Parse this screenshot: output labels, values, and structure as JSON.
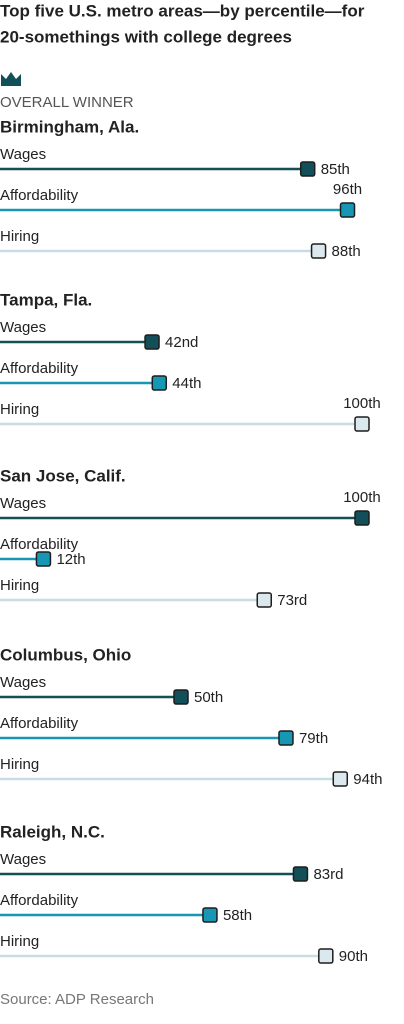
{
  "chart_data": {
    "type": "lollipop",
    "title": [
      "Top five U.S. metro areas—by percentile—for",
      "20-somethings with college degrees"
    ],
    "annotation": "OVERALL WINNER",
    "source": "Source: ADP Research",
    "xlim": [
      0,
      100
    ],
    "metrics": [
      {
        "name": "Wages",
        "color": "#134f58",
        "marker": "#134f58"
      },
      {
        "name": "Affordability",
        "color": "#1897b4",
        "marker": "#1897b4"
      },
      {
        "name": "Hiring",
        "color": "#c8dde3",
        "marker": "#dbe8ee"
      }
    ],
    "groups": [
      {
        "name": "Birmingham, Ala.",
        "values": [
          85,
          96,
          88
        ],
        "value_labels": [
          "85th",
          "96th",
          "88th"
        ]
      },
      {
        "name": "Tampa, Fla.",
        "values": [
          42,
          44,
          100
        ],
        "value_labels": [
          "42nd",
          "44th",
          "100th"
        ]
      },
      {
        "name": "San Jose, Calif.",
        "values": [
          100,
          12,
          73
        ],
        "value_labels": [
          "100th",
          "12th",
          "73rd"
        ]
      },
      {
        "name": "Columbus, Ohio",
        "values": [
          50,
          79,
          94
        ],
        "value_labels": [
          "50th",
          "79th",
          "94th"
        ]
      },
      {
        "name": "Raleigh, N.C.",
        "values": [
          83,
          58,
          90
        ],
        "value_labels": [
          "83rd",
          "58th",
          "90th"
        ]
      }
    ]
  }
}
